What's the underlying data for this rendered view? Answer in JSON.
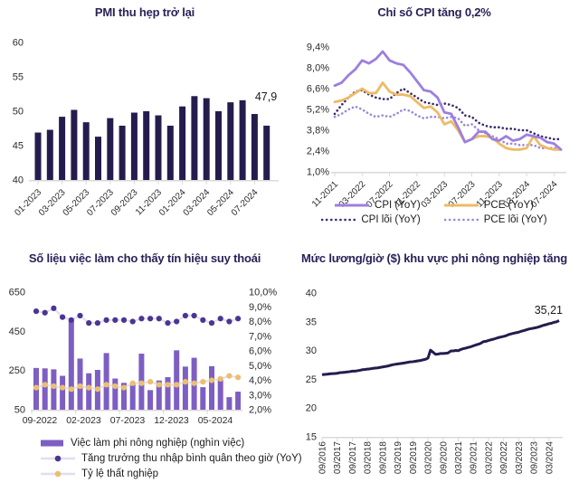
{
  "chart_data": [
    {
      "id": "pmi",
      "type": "bar",
      "title": "PMI thu hẹp trở lại",
      "categories": [
        "01-2023",
        "02-2023",
        "03-2023",
        "04-2023",
        "05-2023",
        "06-2023",
        "07-2023",
        "08-2023",
        "09-2023",
        "10-2023",
        "11-2023",
        "12-2023",
        "01-2024",
        "02-2024",
        "03-2024",
        "04-2024",
        "05-2024",
        "06-2024",
        "07-2024",
        "08-2024"
      ],
      "values": [
        46.9,
        47.3,
        49.2,
        50.2,
        48.4,
        46.3,
        49.0,
        47.9,
        49.8,
        50.0,
        49.4,
        47.9,
        50.7,
        52.2,
        51.9,
        50.0,
        51.3,
        51.6,
        49.6,
        47.9
      ],
      "ylim": [
        40,
        60
      ],
      "yticks": [
        60,
        55,
        50,
        45,
        40
      ],
      "x_label_every": 2,
      "annotation": {
        "text": "47,9"
      },
      "bar_color": "#251c4e",
      "grid": false,
      "legend_position": "none"
    },
    {
      "id": "cpi",
      "type": "line",
      "title": "Chỉ số CPI tăng 0,2%",
      "x": [
        "11-2021",
        "12-2021",
        "01-2022",
        "02-2022",
        "03-2022",
        "04-2022",
        "05-2022",
        "06-2022",
        "07-2022",
        "08-2022",
        "09-2022",
        "10-2022",
        "11-2022",
        "12-2022",
        "01-2023",
        "02-2023",
        "03-2023",
        "04-2023",
        "05-2023",
        "06-2023",
        "07-2023",
        "08-2023",
        "09-2023",
        "10-2023",
        "11-2023",
        "12-2023",
        "01-2024",
        "02-2024",
        "03-2024",
        "04-2024",
        "05-2024",
        "06-2024",
        "07-2024",
        "08-2024"
      ],
      "x_label_every": 4,
      "ylim": [
        1.0,
        9.4
      ],
      "yticks": [
        9.4,
        8.0,
        6.6,
        5.2,
        3.8,
        2.4,
        1.0
      ],
      "ytick_labels": [
        "9,4%",
        "8,0%",
        "6,6%",
        "5,2%",
        "3,8%",
        "2,4%",
        "1,0%"
      ],
      "series": [
        {
          "name": "CPI (YoY)",
          "style": "solid",
          "color": "#9c7fe0",
          "values": [
            6.8,
            7.0,
            7.5,
            7.9,
            8.5,
            8.3,
            8.6,
            9.1,
            8.5,
            8.3,
            8.2,
            7.7,
            7.1,
            6.5,
            6.4,
            6.0,
            5.0,
            4.9,
            4.0,
            3.0,
            3.2,
            3.7,
            3.7,
            3.2,
            3.1,
            3.4,
            3.1,
            3.2,
            3.5,
            3.4,
            3.3,
            3.0,
            2.9,
            2.5
          ]
        },
        {
          "name": "PCE (YoY)",
          "style": "solid",
          "color": "#eeba66",
          "values": [
            5.7,
            5.8,
            6.0,
            6.3,
            6.6,
            6.3,
            6.3,
            7.0,
            6.4,
            6.2,
            6.2,
            6.1,
            5.7,
            5.3,
            5.4,
            5.0,
            4.2,
            4.4,
            3.8,
            3.0,
            3.2,
            3.4,
            3.4,
            3.3,
            2.9,
            2.6,
            2.5,
            2.5,
            2.6,
            3.4,
            2.8,
            2.6,
            2.5,
            2.5
          ]
        },
        {
          "name": "CPI lõi (YoY)",
          "style": "dotted",
          "color": "#3b2a6d",
          "values": [
            4.9,
            5.5,
            6.0,
            6.4,
            6.5,
            6.2,
            6.0,
            5.9,
            5.9,
            6.3,
            6.6,
            6.3,
            6.0,
            5.7,
            5.6,
            5.5,
            5.6,
            5.5,
            5.3,
            4.8,
            4.7,
            4.3,
            4.1,
            4.0,
            4.0,
            3.9,
            3.9,
            3.8,
            3.8,
            3.6,
            3.4,
            3.3,
            3.2,
            3.2
          ]
        },
        {
          "name": "PCE lõi (YoY)",
          "style": "dotted",
          "color": "#9a88d8",
          "values": [
            4.7,
            4.9,
            5.2,
            5.4,
            5.2,
            4.9,
            4.7,
            4.8,
            4.7,
            4.9,
            5.2,
            5.1,
            4.8,
            4.6,
            4.7,
            4.7,
            4.6,
            4.7,
            4.6,
            4.1,
            4.2,
            3.8,
            3.6,
            3.4,
            3.2,
            2.9,
            2.9,
            2.8,
            2.8,
            2.8,
            2.6,
            2.6,
            2.6,
            2.6
          ]
        }
      ],
      "grid": false,
      "legend_position": "bottom"
    },
    {
      "id": "jobs",
      "type": "combo",
      "title": "Số liệu việc làm cho thấy tín hiệu suy thoái",
      "categories": [
        "09-2022",
        "10-2022",
        "11-2022",
        "12-2022",
        "01-2023",
        "02-2023",
        "03-2023",
        "04-2023",
        "05-2023",
        "06-2023",
        "07-2023",
        "08-2023",
        "09-2023",
        "10-2023",
        "11-2023",
        "12-2023",
        "01-2024",
        "02-2024",
        "03-2024",
        "04-2024",
        "05-2024",
        "06-2024",
        "07-2024",
        "08-2024"
      ],
      "x_tick_indices": [
        0,
        5,
        10,
        15,
        20
      ],
      "x_tick_labels": [
        "09-2022",
        "02-2023",
        "07-2023",
        "12-2023",
        "05-2024"
      ],
      "left_ylim": [
        50,
        650
      ],
      "left_yticks": [
        650,
        450,
        250,
        50
      ],
      "right_ylim": [
        2.0,
        10.0
      ],
      "right_yticks": [
        10,
        9,
        8,
        7,
        6,
        5,
        4,
        3,
        2
      ],
      "right_ytick_labels": [
        "10,0%",
        "9,0%",
        "8,0%",
        "7,0%",
        "6,0%",
        "5,0%",
        "4,0%",
        "3,0%",
        "2,0%"
      ],
      "bars": {
        "name": "Việc làm phi nông nghiệp (nghìn việc)",
        "color": "#7d5ec3",
        "values": [
          263,
          261,
          256,
          223,
          517,
          311,
          236,
          253,
          339,
          209,
          187,
          187,
          336,
          150,
          199,
          216,
          353,
          270,
          315,
          165,
          272,
          206,
          114,
          142
        ]
      },
      "dot_series": [
        {
          "name": "Tăng trưởng thu nhập bình quân theo giờ (YoY)",
          "dot_color": "#4b3591",
          "line_color": "#e4ddf1",
          "values": [
            8.7,
            8.6,
            8.9,
            8.3,
            8.1,
            8.4,
            7.9,
            7.9,
            8.1,
            8.1,
            8.1,
            8.0,
            8.2,
            8.2,
            8.2,
            7.9,
            8.0,
            8.4,
            8.4,
            8.1,
            7.9,
            8.2,
            8.0,
            8.2
          ]
        },
        {
          "name": "Tỷ lệ thất nghiệp",
          "dot_color": "#ecbf6e",
          "line_color": "#e4ddf1",
          "values": [
            3.5,
            3.7,
            3.6,
            3.5,
            3.4,
            3.6,
            3.5,
            3.4,
            3.7,
            3.6,
            3.5,
            3.8,
            3.8,
            3.9,
            3.7,
            3.7,
            3.7,
            3.9,
            3.8,
            3.9,
            4.0,
            4.1,
            4.3,
            4.2
          ]
        }
      ],
      "grid": false,
      "legend_position": "bottom-left"
    },
    {
      "id": "wage",
      "type": "line",
      "title": "Mức lương/giờ ($) khu vực phi nông nghiệp tăng",
      "x_tick_labels": [
        "09/2016",
        "03/2017",
        "09/2017",
        "03/2018",
        "09/2018",
        "03/2019",
        "09/2019",
        "03/2020",
        "09/2020",
        "03/2021",
        "09/2021",
        "03/2022",
        "09/2022",
        "03/2023",
        "09/2023",
        "03/2024"
      ],
      "x_label_every": 6,
      "ylim": [
        15,
        40
      ],
      "yticks": [
        40,
        35,
        30,
        25,
        20,
        15
      ],
      "annotation": {
        "text": "35,21"
      },
      "series": [
        {
          "name": "wage-per-hour",
          "style": "solid",
          "color": "#251c4e",
          "values": [
            25.81,
            25.85,
            25.89,
            25.95,
            25.98,
            26.0,
            26.04,
            26.16,
            26.19,
            26.23,
            26.29,
            26.33,
            26.42,
            26.42,
            26.49,
            26.57,
            26.67,
            26.71,
            26.77,
            26.82,
            26.89,
            26.95,
            26.99,
            27.07,
            27.15,
            27.22,
            27.3,
            27.42,
            27.53,
            27.61,
            27.67,
            27.73,
            27.8,
            27.87,
            27.95,
            28.04,
            28.06,
            28.13,
            28.21,
            28.27,
            28.38,
            28.47,
            28.69,
            30.07,
            29.71,
            29.35,
            29.39,
            29.49,
            29.49,
            29.52,
            29.59,
            29.91,
            29.93,
            30.02,
            29.97,
            30.19,
            30.33,
            30.42,
            30.55,
            30.66,
            30.82,
            30.98,
            31.1,
            31.28,
            31.55,
            31.6,
            31.75,
            31.87,
            31.98,
            32.12,
            32.26,
            32.36,
            32.46,
            32.58,
            32.78,
            32.89,
            33.01,
            33.1,
            33.2,
            33.36,
            33.46,
            33.6,
            33.74,
            33.82,
            33.91,
            34.0,
            34.12,
            34.27,
            34.42,
            34.52,
            34.66,
            34.75,
            34.91,
            35.0,
            35.21
          ]
        }
      ],
      "grid": false,
      "legend_position": "none"
    }
  ],
  "style": {
    "title_color": "#2a2258",
    "axis_text_color": "#2b2b2b",
    "axis_line_color": "#d9d9d9",
    "annotation_color": "#1a1a1a"
  }
}
